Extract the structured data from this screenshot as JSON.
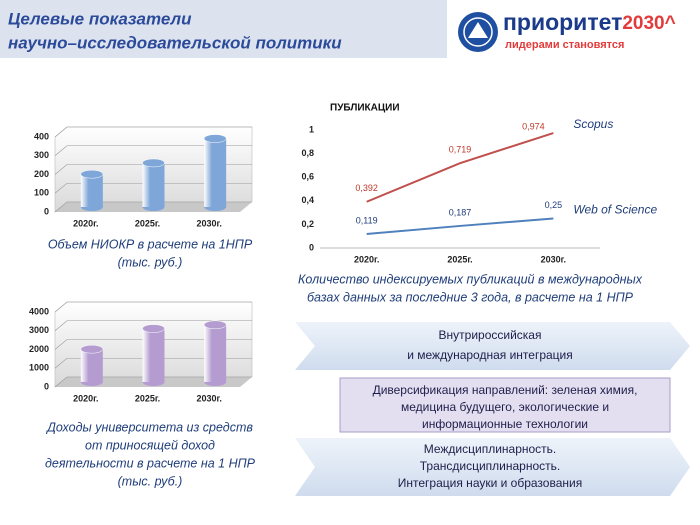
{
  "header": {
    "title_lines": [
      "Целевые показатели",
      "научно–исследовательской политики"
    ]
  },
  "logo": {
    "brand": "приоритет",
    "brand_year": "2030^",
    "slogan": "лидерами становятся"
  },
  "chart_data": [
    {
      "type": "bar",
      "categories": [
        "2020г.",
        "2025г.",
        "2030г."
      ],
      "values": [
        175,
        235,
        365
      ],
      "color": "#7ea6d8",
      "ylim": [
        0,
        400
      ],
      "yticks": [
        0,
        100,
        200,
        300,
        400
      ],
      "grid": true,
      "caption": [
        "Объем НИОКР в расчете на 1НПР",
        "(тыс. руб.)"
      ]
    },
    {
      "type": "line",
      "title": "ПУБЛИКАЦИИ",
      "categories": [
        "2020г.",
        "2025г.",
        "2030г."
      ],
      "series": [
        {
          "name": "Scopus",
          "color": "#c0504d",
          "values": [
            0.392,
            0.719,
            0.974
          ],
          "value_labels": [
            "0,392",
            "0,719",
            "0,974"
          ]
        },
        {
          "name": "Web of Science",
          "color": "#4f81bd",
          "values": [
            0.119,
            0.187,
            0.25
          ],
          "value_labels": [
            "0,119",
            "0,187",
            "0,25"
          ]
        }
      ],
      "ylim": [
        0,
        1
      ],
      "yticks": [
        0,
        {
          "value": 0.2,
          "label": "0,2"
        },
        {
          "value": 0.4,
          "label": "0,4"
        },
        {
          "value": 0.6,
          "label": "0,6"
        },
        {
          "value": 0.8,
          "label": "0,8"
        },
        1
      ],
      "caption": [
        "Количество индексируемых публикаций в международных",
        "базах данных за последние 3 года, в расчете на 1 НПР"
      ]
    },
    {
      "type": "bar",
      "categories": [
        "2020г.",
        "2025г.",
        "2030г."
      ],
      "values": [
        1750,
        2850,
        3050
      ],
      "color": "#b49cd0",
      "ylim": [
        0,
        4000
      ],
      "yticks": [
        0,
        1000,
        2000,
        3000,
        4000
      ],
      "grid": true,
      "caption": [
        "Доходы университета из средств",
        "от приносящей доход",
        "деятельности в расчете на 1 НПР",
        "(тыс. руб.)"
      ]
    }
  ],
  "banners": [
    {
      "lines": [
        "Внутрироссийская",
        "и международная  интеграция"
      ]
    },
    {
      "lines": [
        "Диверсификация  направлений:  зеленая химия,",
        "медицина будущего, экологические  и",
        "информационные  технологии"
      ]
    },
    {
      "lines": [
        "Междисциплинарность.",
        "Трансдисциплинарность.",
        "Интеграция  науки и образования"
      ]
    }
  ]
}
